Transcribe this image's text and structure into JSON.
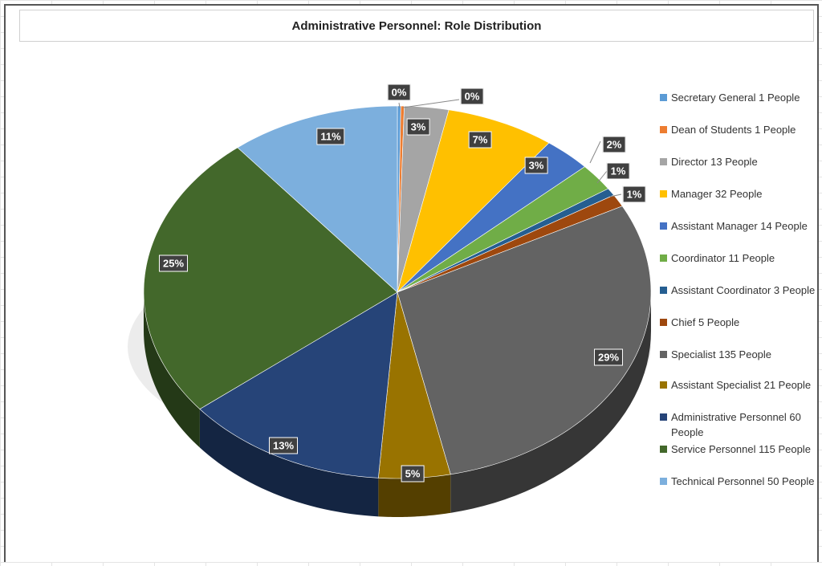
{
  "chart_data": {
    "type": "pie",
    "title": "Administrative Personnel: Role Distribution",
    "legend_position": "right",
    "three_d": true,
    "categories": [
      "Secretary General",
      "Dean of Students",
      "Director",
      "Manager",
      "Assistant Manager",
      "Coordinator",
      "Assistant Coordinator",
      "Chief",
      "Specialist",
      "Assistant Specialist",
      "Administrative Personnel",
      "Service Personnel",
      "Technical Personnel"
    ],
    "values": [
      1,
      1,
      13,
      32,
      14,
      11,
      3,
      5,
      135,
      21,
      60,
      115,
      50
    ],
    "legend_labels": [
      "Secretary General 1 People",
      "Dean of Students 1 People",
      "Director 13 People",
      "Manager 32 People",
      "Assistant Manager 14 People",
      "Coordinator 11 People",
      "Assistant Coordinator 3 People",
      "Chief 5 People",
      "Specialist 135 People",
      "Assistant Specialist 21 People",
      "Administrative Personnel 60 People",
      "Service Personnel 115 People",
      "Technical Personnel 50 People"
    ],
    "data_labels": [
      "0%",
      "0%",
      "3%",
      "7%",
      "3%",
      "2%",
      "1%",
      "1%",
      "29%",
      "5%",
      "13%",
      "25%",
      "11%"
    ],
    "colors": [
      "#5B9BD5",
      "#ED7D31",
      "#A5A5A5",
      "#FFC000",
      "#4472C4",
      "#70AD47",
      "#255E91",
      "#9E480E",
      "#636363",
      "#997300",
      "#264478",
      "#43682B",
      "#7CAFDD"
    ]
  }
}
